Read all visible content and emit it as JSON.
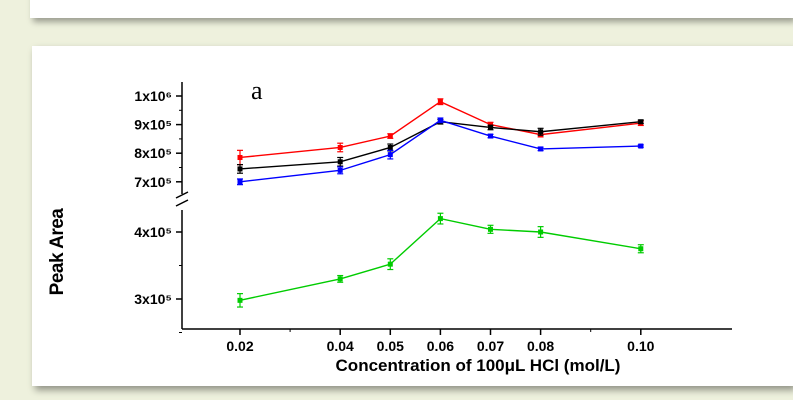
{
  "chart_data": {
    "type": "line",
    "panel_label": "a",
    "xlabel": "Concentration of 100μL HCl (mol/L)",
    "ylabel": "Peak Area",
    "x": [
      0.02,
      0.04,
      0.05,
      0.06,
      0.07,
      0.08,
      0.1
    ],
    "x_tick_labels": [
      "0.02",
      "0.04",
      "0.05",
      "0.06",
      "0.07",
      "0.08",
      "0.10"
    ],
    "y_axis_break": true,
    "y_ticks_upper": [
      {
        "value": 700000,
        "label": "7x10⁵"
      },
      {
        "value": 800000,
        "label": "8x10⁵"
      },
      {
        "value": 900000,
        "label": "9x10⁵"
      },
      {
        "value": 1000000,
        "label": "1x10⁶"
      }
    ],
    "y_ticks_lower": [
      {
        "value": 300000,
        "label": "3x10⁵"
      },
      {
        "value": 400000,
        "label": "4x10⁵"
      }
    ],
    "series": [
      {
        "color": "#ff0000",
        "values": [
          785000,
          820000,
          860000,
          980000,
          900000,
          865000,
          905000
        ],
        "errors": [
          25000,
          15000,
          8000,
          10000,
          8000,
          8000,
          8000
        ]
      },
      {
        "color": "#000000",
        "values": [
          745000,
          770000,
          820000,
          910000,
          890000,
          875000,
          910000
        ],
        "errors": [
          15000,
          15000,
          12000,
          8000,
          8000,
          12000,
          6000
        ]
      },
      {
        "color": "#0000ff",
        "values": [
          700000,
          740000,
          795000,
          915000,
          860000,
          815000,
          825000
        ],
        "errors": [
          10000,
          12000,
          15000,
          8000,
          6000,
          6000,
          4000
        ]
      },
      {
        "color": "#00cc00",
        "values": [
          298000,
          330000,
          352000,
          420000,
          404000,
          400000,
          375000
        ],
        "errors": [
          10000,
          5000,
          8000,
          8000,
          6000,
          8000,
          6000
        ]
      }
    ]
  }
}
